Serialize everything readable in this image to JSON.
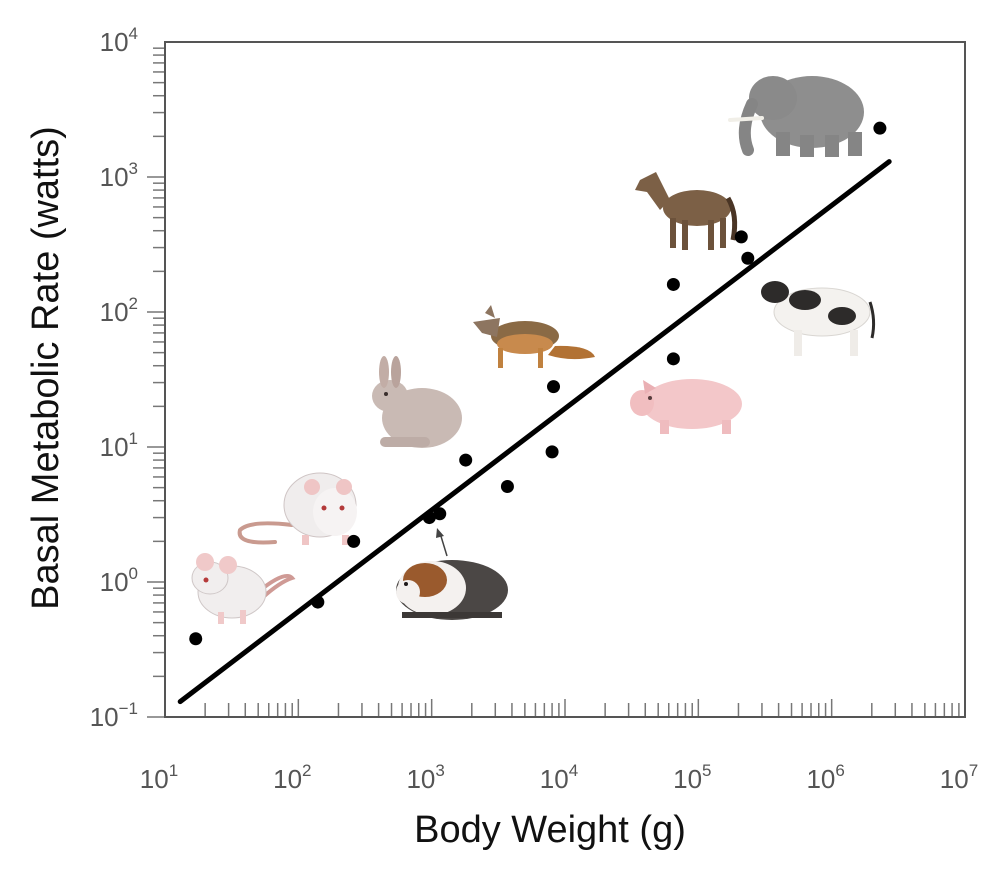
{
  "chart_data": {
    "type": "scatter",
    "title": "",
    "xlabel": "Body Weight (g)",
    "ylabel": "Basal Metabolic Rate (watts)",
    "x_scale": "log",
    "y_scale": "log",
    "xlim": [
      10,
      10000000
    ],
    "ylim": [
      0.1,
      10000
    ],
    "grid": false,
    "legend": "none",
    "x_ticks": [
      {
        "base": "10",
        "exp": "1"
      },
      {
        "base": "10",
        "exp": "2"
      },
      {
        "base": "10",
        "exp": "3"
      },
      {
        "base": "10",
        "exp": "4"
      },
      {
        "base": "10",
        "exp": "5"
      },
      {
        "base": "10",
        "exp": "6"
      },
      {
        "base": "10",
        "exp": "7"
      }
    ],
    "y_ticks": [
      {
        "base": "10",
        "exp": "−1"
      },
      {
        "base": "10",
        "exp": "0"
      },
      {
        "base": "10",
        "exp": "1"
      },
      {
        "base": "10",
        "exp": "2"
      },
      {
        "base": "10",
        "exp": "3"
      },
      {
        "base": "10",
        "exp": "4"
      }
    ],
    "series": [
      {
        "points": [
          {
            "x": 17,
            "y": 0.38
          },
          {
            "x": 140,
            "y": 0.71
          },
          {
            "x": 260,
            "y": 2.0
          },
          {
            "x": 960,
            "y": 3.0
          },
          {
            "x": 1150,
            "y": 3.2
          },
          {
            "x": 1800,
            "y": 8.0
          },
          {
            "x": 3700,
            "y": 5.1
          },
          {
            "x": 8000,
            "y": 9.2
          },
          {
            "x": 8200,
            "y": 28
          },
          {
            "x": 65000,
            "y": 45
          },
          {
            "x": 65000,
            "y": 160
          },
          {
            "x": 210000,
            "y": 360
          },
          {
            "x": 235000,
            "y": 250
          },
          {
            "x": 2300000,
            "y": 2300
          }
        ]
      }
    ],
    "fit_line": {
      "x": [
        13,
        2700000
      ],
      "y": [
        0.13,
        1300
      ]
    },
    "illustrations": [
      "mouse",
      "rat",
      "rabbit",
      "guinea-pig",
      "fox",
      "pig",
      "horse",
      "cow",
      "elephant"
    ],
    "colors": {
      "points": "#000000",
      "fit_line": "#000000",
      "frame": "#555555"
    }
  }
}
